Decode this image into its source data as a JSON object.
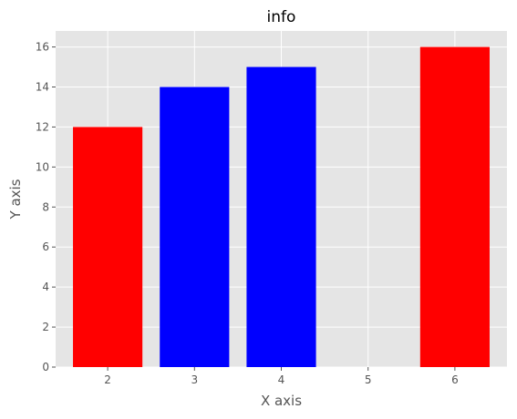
{
  "chart_data": {
    "type": "bar",
    "title": "info",
    "xlabel": "X axis",
    "ylabel": "Y axis",
    "x": [
      2,
      3,
      4,
      6
    ],
    "values": [
      12,
      14,
      15,
      16
    ],
    "bar_colors": [
      "#ff0000",
      "#0000ff",
      "#0000ff",
      "#ff0000"
    ],
    "xticks": [
      2,
      3,
      4,
      5,
      6
    ],
    "yticks": [
      0,
      2,
      4,
      6,
      8,
      10,
      12,
      14,
      16
    ],
    "xlim": [
      1.4,
      6.6
    ],
    "ylim": [
      0,
      16.8
    ],
    "grid": true,
    "background_color": "#e5e5e5",
    "grid_color": "#ffffff"
  }
}
